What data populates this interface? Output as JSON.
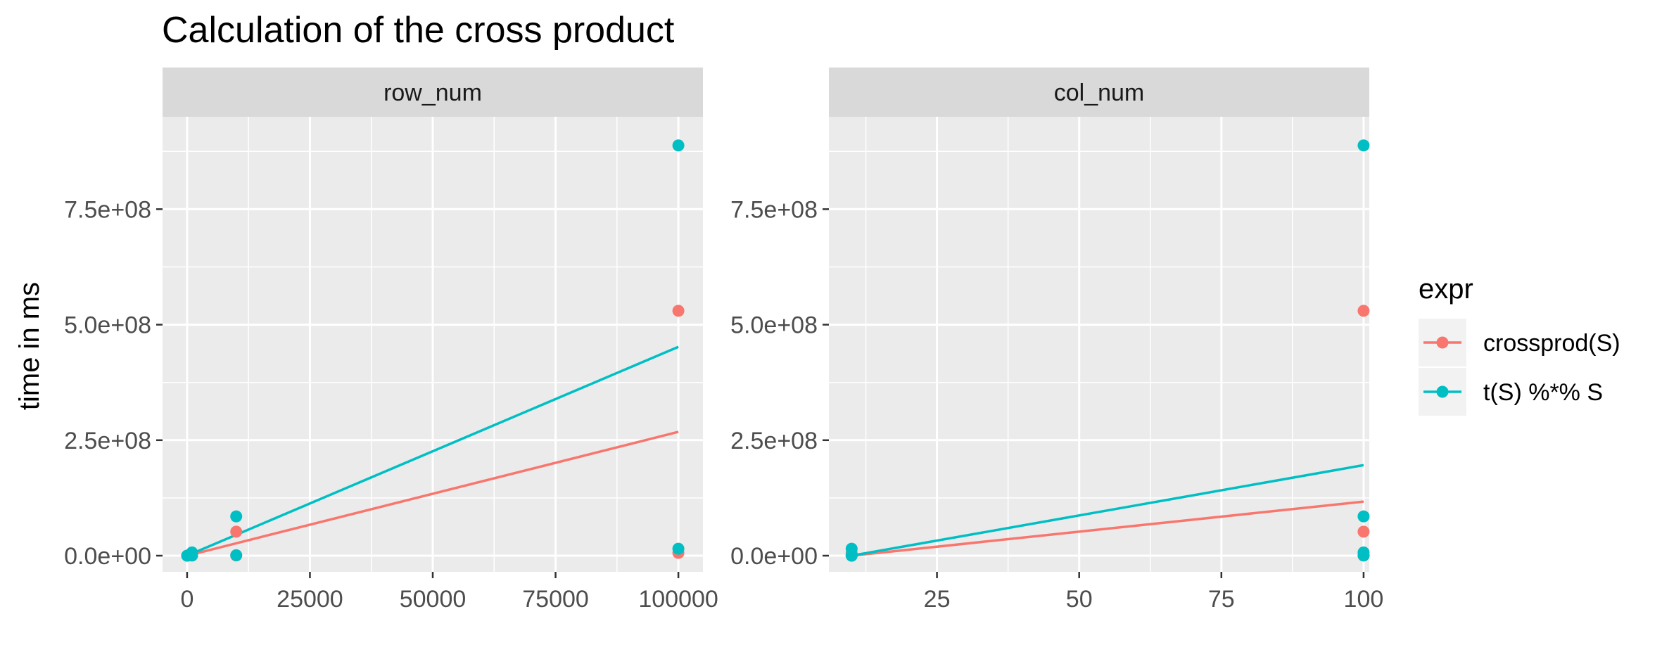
{
  "chart_data": {
    "type": "scatter",
    "title": "Calculation of the cross product",
    "ylabel": "time in ms",
    "xlabel": "",
    "legend": {
      "title": "expr",
      "position": "right",
      "entries": [
        "crossprod(S)",
        "t(S) %*% S"
      ]
    },
    "colors": {
      "crossprod(S)": "#F8766D",
      "t(S) %*% S": "#00BFC4"
    },
    "panel_background": "#EBEBEB",
    "strip_background": "#D9D9D9",
    "grid": true,
    "ylim": [
      -35000000,
      950000000
    ],
    "y_ticks": [
      0,
      250000000,
      500000000,
      750000000
    ],
    "y_tick_labels": [
      "0.0e+00",
      "2.5e+08",
      "5.0e+08",
      "7.5e+08"
    ],
    "panels": [
      {
        "strip": "row_num",
        "xlim": [
          -5000,
          105000
        ],
        "x_ticks": [
          0,
          25000,
          50000,
          75000,
          100000
        ],
        "x_tick_labels": [
          "0",
          "25000",
          "50000",
          "75000",
          "100000"
        ],
        "series": [
          {
            "name": "crossprod(S)",
            "points": [
              [
                10,
                0
              ],
              [
                100,
                100000
              ],
              [
                1000,
                1000000
              ],
              [
                10000,
                52000000
              ],
              [
                100000,
                530000000
              ],
              [
                100000,
                6000000
              ],
              [
                10000,
                500000
              ],
              [
                1000,
                300000
              ]
            ],
            "fit": [
              [
                0,
                0
              ],
              [
                100000,
                268000000
              ]
            ]
          },
          {
            "name": "t(S) %*% S",
            "points": [
              [
                10,
                0
              ],
              [
                100,
                200000
              ],
              [
                1000,
                7000000
              ],
              [
                10000,
                85000000
              ],
              [
                100000,
                888000000
              ],
              [
                100000,
                15000000
              ],
              [
                10000,
                1000000
              ],
              [
                1000,
                500000
              ]
            ],
            "fit": [
              [
                0,
                0
              ],
              [
                100000,
                452000000
              ]
            ]
          }
        ]
      },
      {
        "strip": "col_num",
        "xlim": [
          6,
          101
        ],
        "x_ticks": [
          25,
          50,
          75,
          100
        ],
        "x_tick_labels": [
          "25",
          "50",
          "75",
          "100"
        ],
        "series": [
          {
            "name": "crossprod(S)",
            "points": [
              [
                10,
                0
              ],
              [
                10,
                500000
              ],
              [
                10,
                6000000
              ],
              [
                100,
                300000
              ],
              [
                100,
                1000000
              ],
              [
                100,
                52000000
              ],
              [
                100,
                530000000
              ]
            ],
            "fit": [
              [
                10,
                0
              ],
              [
                100,
                117000000
              ]
            ]
          },
          {
            "name": "t(S) %*% S",
            "points": [
              [
                10,
                0
              ],
              [
                10,
                1000000
              ],
              [
                10,
                15000000
              ],
              [
                100,
                500000
              ],
              [
                100,
                7000000
              ],
              [
                100,
                85000000
              ],
              [
                100,
                888000000
              ]
            ],
            "fit": [
              [
                10,
                0
              ],
              [
                100,
                196000000
              ]
            ]
          }
        ]
      }
    ]
  }
}
